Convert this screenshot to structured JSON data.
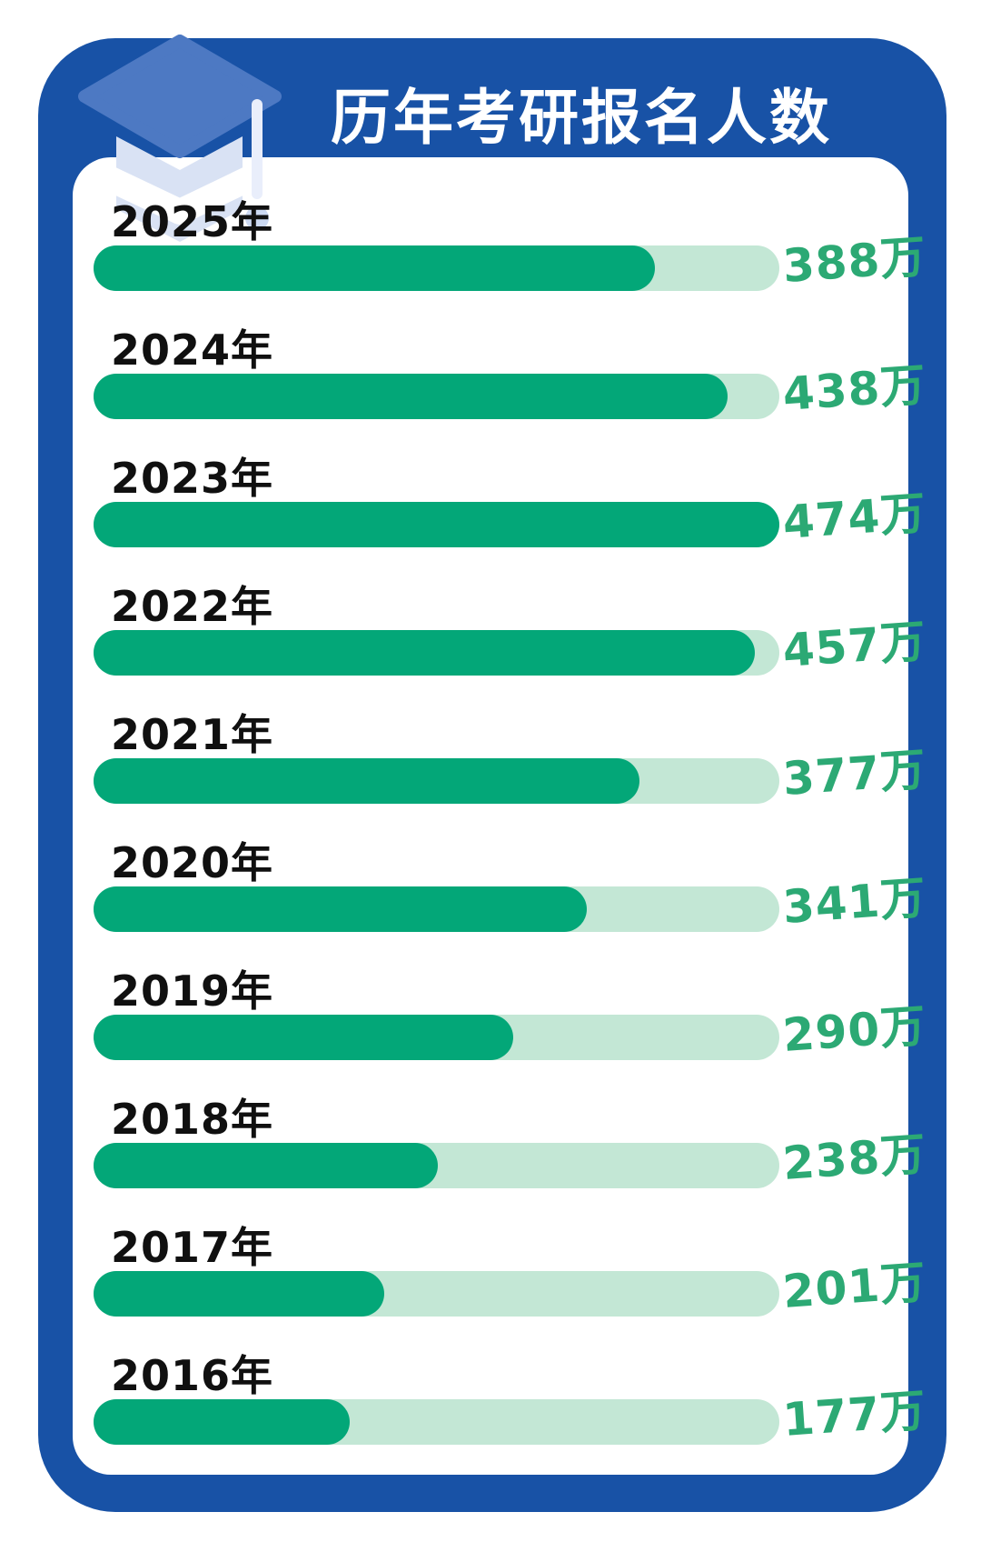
{
  "title": "历年考研报名人数",
  "unit_suffix": "万",
  "colors": {
    "frame_blue": "#1852a6",
    "card_white": "#ffffff",
    "bar_fill_green": "#03a778",
    "bar_track_green": "#c3e7d5",
    "value_text_green": "#2ca974",
    "year_label_black": "#101010",
    "icon_blue": "#4d79c3",
    "icon_light_blue": "#d9e2f4"
  },
  "chart_data": {
    "type": "bar",
    "orientation": "horizontal",
    "title": "历年考研报名人数",
    "unit": "万",
    "max_value": 474,
    "grid": false,
    "legend": false,
    "categories": [
      "2025年",
      "2024年",
      "2023年",
      "2022年",
      "2021年",
      "2020年",
      "2019年",
      "2018年",
      "2017年",
      "2016年"
    ],
    "values": [
      388,
      438,
      474,
      457,
      377,
      341,
      290,
      238,
      201,
      177
    ],
    "value_labels": [
      "388万",
      "438万",
      "474万",
      "457万",
      "377万",
      "341万",
      "290万",
      "238万",
      "201万",
      "177万"
    ]
  }
}
